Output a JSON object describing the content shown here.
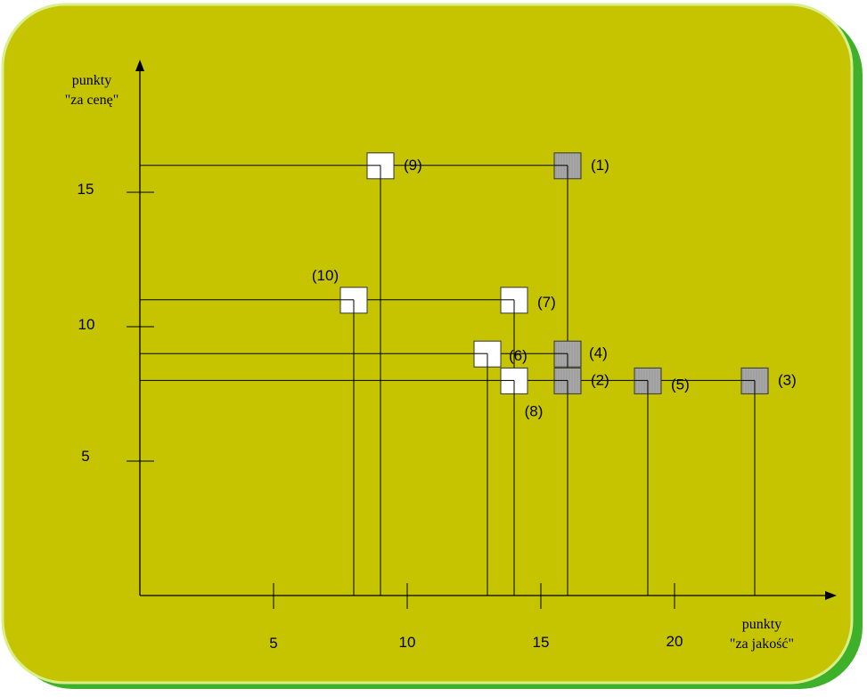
{
  "axes": {
    "y_label_line1": "punkty",
    "y_label_line2": "\"za cenę\"",
    "x_label_line1": "punkty",
    "x_label_line2": "\"za jakość\"",
    "x_ticks": [
      "5",
      "10",
      "15",
      "20"
    ],
    "y_ticks": [
      "5",
      "10",
      "15"
    ]
  },
  "colors": {
    "panel": "#c6c400",
    "panel_shadow": "#3fb02a",
    "panel_border": "#d9ef8a",
    "white_box": "#ffffff",
    "gray_box": "#a8a8a8"
  },
  "chart_data": {
    "type": "scatter",
    "xlabel": "punkty \"za jakość\"",
    "ylabel": "punkty \"za cenę\"",
    "xlim": [
      0,
      26
    ],
    "ylim": [
      0,
      20
    ],
    "points": [
      {
        "label": "(1)",
        "x": 16,
        "y": 16,
        "style": "gray"
      },
      {
        "label": "(2)",
        "x": 16,
        "y": 8,
        "style": "gray"
      },
      {
        "label": "(3)",
        "x": 23,
        "y": 8,
        "style": "gray"
      },
      {
        "label": "(4)",
        "x": 16,
        "y": 9,
        "style": "gray"
      },
      {
        "label": "(5)",
        "x": 19,
        "y": 8,
        "style": "gray"
      },
      {
        "label": "(6)",
        "x": 13,
        "y": 9,
        "style": "white"
      },
      {
        "label": "(7)",
        "x": 14,
        "y": 11,
        "style": "white"
      },
      {
        "label": "(8)",
        "x": 14,
        "y": 8,
        "style": "white"
      },
      {
        "label": "(9)",
        "x": 9,
        "y": 16,
        "style": "white"
      },
      {
        "label": "(10)",
        "x": 8,
        "y": 11,
        "style": "white"
      }
    ]
  }
}
